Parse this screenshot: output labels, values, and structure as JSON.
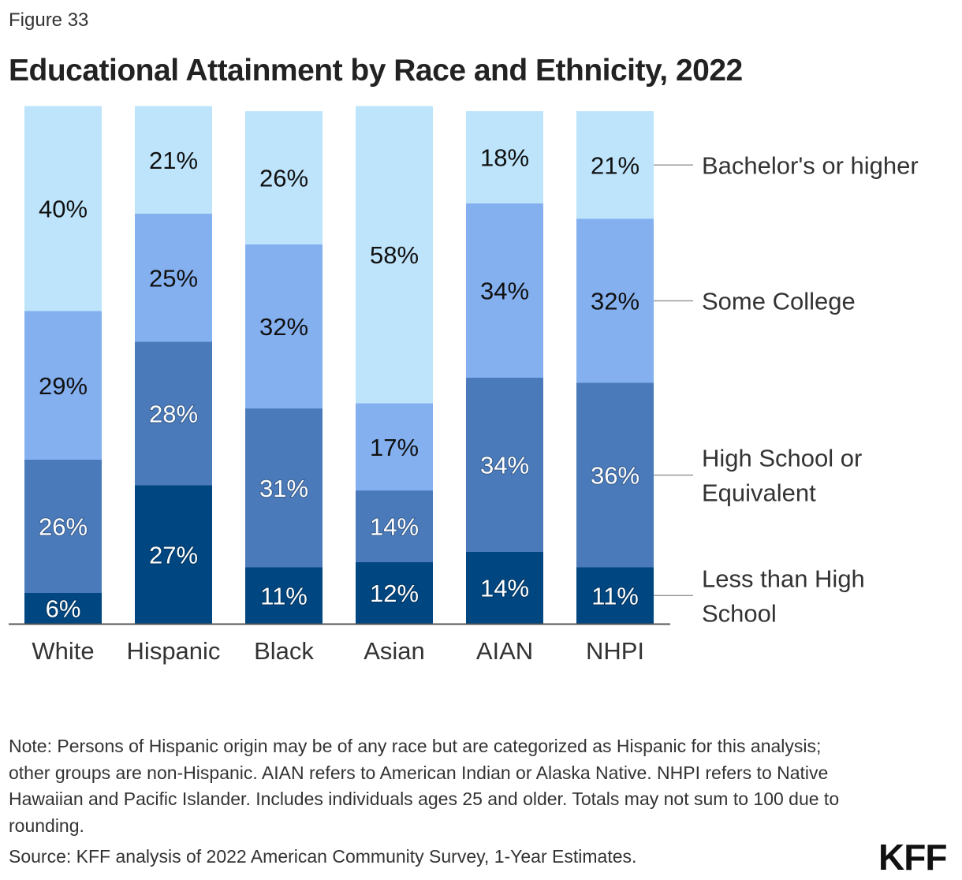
{
  "figure_label": "Figure 33",
  "chart_data": {
    "type": "bar",
    "stacked": true,
    "title": "Educational Attainment by Race and Ethnicity, 2022",
    "categories": [
      "White",
      "Hispanic",
      "Black",
      "Asian",
      "AIAN",
      "NHPI"
    ],
    "series": [
      {
        "name": "Less than High School",
        "values": [
          6,
          27,
          11,
          12,
          14,
          11
        ],
        "color": "#004680",
        "label_color": "#ffffff"
      },
      {
        "name": "High School or Equivalent",
        "values": [
          26,
          28,
          31,
          14,
          34,
          36
        ],
        "color": "#4a7aba",
        "label_color": "#ffffff"
      },
      {
        "name": "Some College",
        "values": [
          29,
          25,
          32,
          17,
          34,
          32
        ],
        "color": "#84b0f0",
        "label_color": "#111111"
      },
      {
        "name": "Bachelor's or higher",
        "values": [
          40,
          21,
          26,
          58,
          18,
          21
        ],
        "color": "#bde4fb",
        "label_color": "#111111"
      }
    ],
    "value_format": "%",
    "legend_placement": "right (direct labels)",
    "grid": false,
    "ylim": [
      0,
      101
    ]
  },
  "legend_lines": {
    "Less than High School": [
      "Less than High",
      "School"
    ],
    "High School or Equivalent": [
      "High School or",
      "Equivalent"
    ],
    "Some College": [
      "Some College"
    ],
    "Bachelor's or higher": [
      "Bachelor's or higher"
    ]
  },
  "note": "Note: Persons of Hispanic origin may be of any race but are categorized as Hispanic for this analysis; other groups are non-Hispanic. AIAN refers to American Indian or Alaska Native. NHPI refers to Native Hawaiian and Pacific Islander. Includes individuals ages 25 and older. Totals may not sum to 100 due to rounding.",
  "source": "Source: KFF analysis of 2022 American Community Survey, 1-Year Estimates.",
  "logo": "KFF"
}
